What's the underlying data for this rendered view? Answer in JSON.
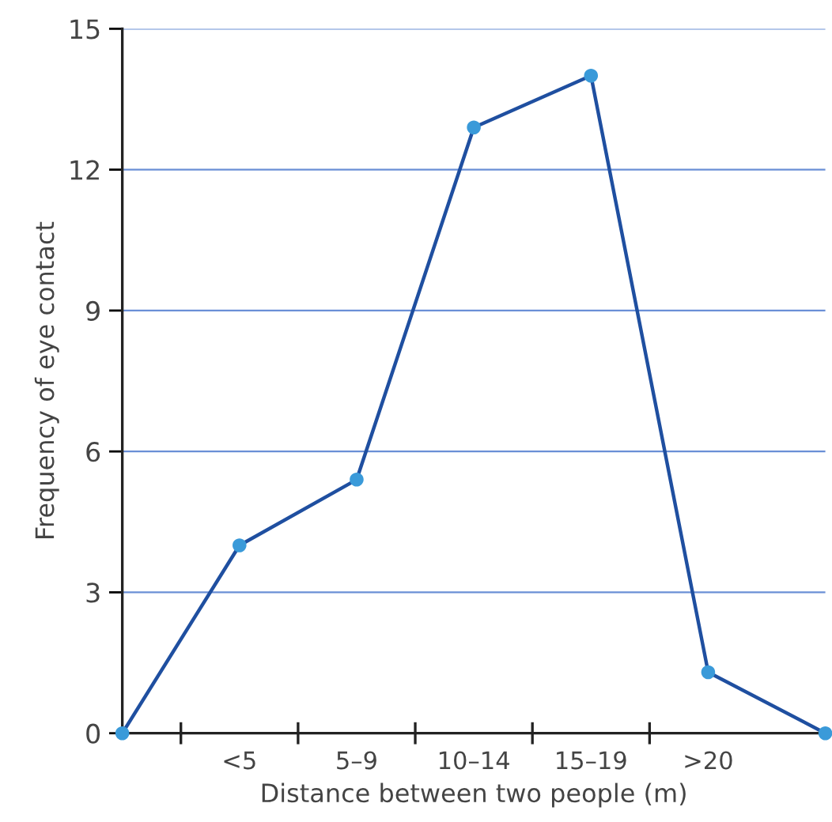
{
  "chart_data": {
    "type": "line",
    "xlabel": "Distance between two people (m)",
    "ylabel": "Frequency of eye contact",
    "categories": [
      null,
      "<5",
      "5–9",
      "10–14",
      "15–19",
      ">20",
      null
    ],
    "series": [
      {
        "color": "#1f4fa0",
        "colors": [
          "#3a9ad9",
          "#3a9ad9",
          "#3a9ad9",
          "#3a9ad9",
          "#3a9ad9",
          "#3a9ad9",
          "#3a9ad9"
        ],
        "values": [
          0,
          4.0,
          5.4,
          12.9,
          14.0,
          1.3,
          0
        ]
      }
    ],
    "ylim": [
      0,
      15
    ],
    "yticks": [
      0,
      3,
      6,
      9,
      12,
      15
    ],
    "grid": "y",
    "marker": "circle",
    "line_style": "solid",
    "legend": false
  }
}
